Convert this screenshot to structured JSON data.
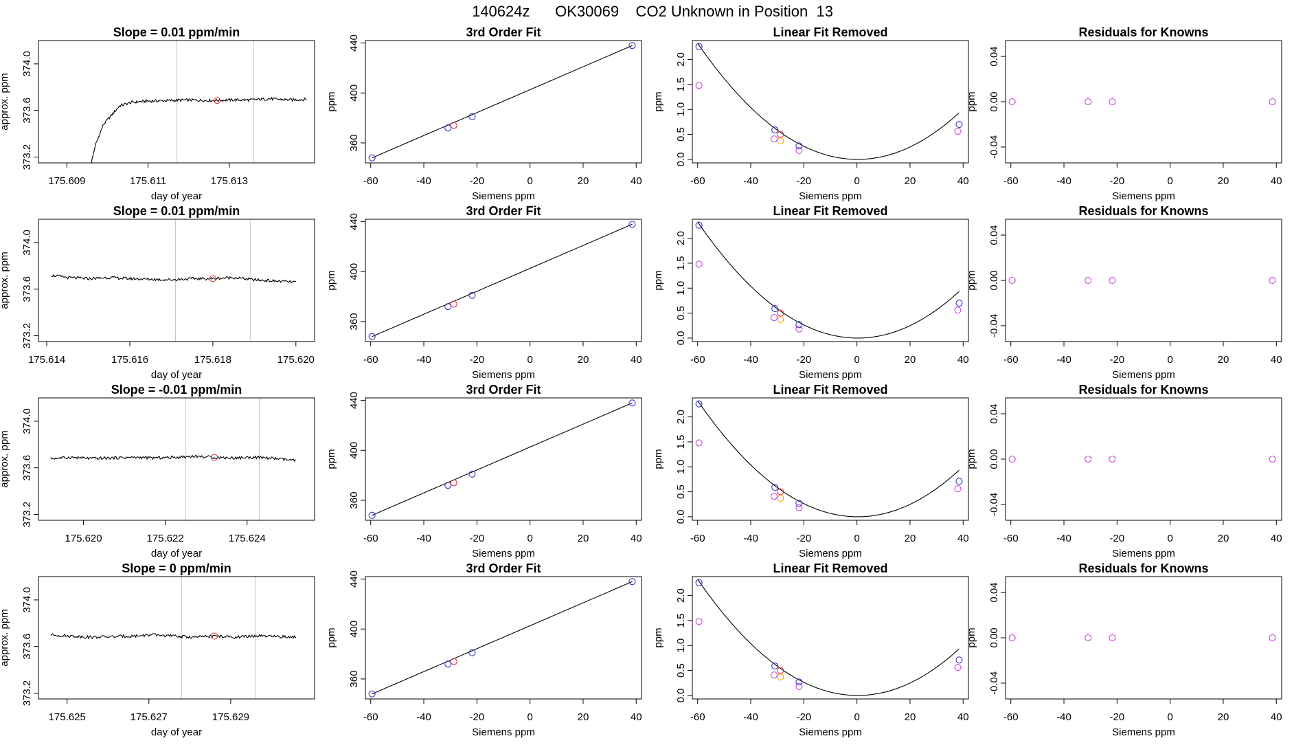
{
  "figure": {
    "title": "140624z      OK30069    CO2 Unknown in Position  13"
  },
  "colors": {
    "line": "#000000",
    "known": "#3333cc",
    "unknown": "#e03030",
    "alt": "#cc44dd",
    "orange": "#ffaa00",
    "vline": "#c8c8c8",
    "frame": "#000000"
  },
  "chart_data": [
    {
      "type": "line",
      "row": 1,
      "title": "Slope =  0.01  ppm/min",
      "xlabel": "day of year",
      "ylabel": "approx. ppm",
      "xlim": [
        175.6083,
        175.6151
      ],
      "ylim": [
        373.15,
        374.2
      ],
      "xticks": [
        175.609,
        175.611,
        175.613
      ],
      "xticklabels": [
        "175.609",
        "175.611",
        "175.613"
      ],
      "yticks": [
        373.2,
        373.6,
        374.0
      ],
      "yticklabels": [
        "373.2",
        "373.6",
        "374.0"
      ],
      "vlines": [
        175.6117,
        175.6136
      ],
      "x": [
        175.6096,
        175.6097,
        175.6099,
        175.6101,
        175.6103,
        175.6106,
        175.611,
        175.6115,
        175.612,
        175.6125,
        175.613,
        175.6135,
        175.614,
        175.6145,
        175.6149
      ],
      "y": [
        373.15,
        373.3,
        373.48,
        373.56,
        373.64,
        373.67,
        373.68,
        373.685,
        373.69,
        373.685,
        373.69,
        373.69,
        373.7,
        373.69,
        373.695
      ],
      "noise": 0.012,
      "marker": {
        "x": 175.6127,
        "y": 373.685
      }
    },
    {
      "type": "scatter",
      "row": 1,
      "title": "3rd Order Fit",
      "xlabel": "Siemens ppm",
      "ylabel": "ppm",
      "xlim": [
        -62,
        42
      ],
      "ylim": [
        344,
        442
      ],
      "xticks": [
        -60,
        -40,
        -20,
        0,
        20,
        40
      ],
      "xticklabels": [
        "-60",
        "-40",
        "-20",
        "0",
        "20",
        "40"
      ],
      "yticks": [
        360,
        400,
        440
      ],
      "yticklabels": [
        "360",
        "400",
        "440"
      ],
      "line": {
        "from": [
          -59.5,
          348
        ],
        "to": [
          38.5,
          438
        ]
      },
      "known": [
        [
          -59.5,
          348
        ],
        [
          -30.9,
          372
        ],
        [
          -21.8,
          381
        ],
        [
          38.5,
          438
        ]
      ],
      "unknown": [
        [
          -28.7,
          374
        ]
      ]
    },
    {
      "type": "scatter",
      "row": 1,
      "title": "Linear Fit Removed",
      "xlabel": "Siemens ppm",
      "ylabel": "ppm",
      "xlim": [
        -62,
        42
      ],
      "ylim": [
        -0.07,
        2.38
      ],
      "xticks": [
        -60,
        -40,
        -20,
        0,
        20,
        40
      ],
      "xticklabels": [
        "-60",
        "-40",
        "-20",
        "0",
        "20",
        "40"
      ],
      "yticks": [
        0.0,
        0.5,
        1.0,
        1.5,
        2.0
      ],
      "yticklabels": [
        "0.0",
        "0.5",
        "1.0",
        "1.5",
        "2.0"
      ],
      "curve": {
        "a": 0.00064,
        "b": -0.00036,
        "xmin": -60,
        "xmax": 38.5
      },
      "known": [
        [
          -59.5,
          2.26
        ],
        [
          -30.9,
          0.59
        ],
        [
          -21.8,
          0.27
        ],
        [
          38.5,
          0.7
        ]
      ],
      "alt": [
        [
          -59.5,
          1.48
        ],
        [
          -31.2,
          0.41
        ],
        [
          -21.8,
          0.18
        ],
        [
          38.0,
          0.56
        ]
      ],
      "unknown": [
        [
          -28.8,
          0.5
        ]
      ],
      "orange": [
        [
          -28.8,
          0.37
        ]
      ]
    },
    {
      "type": "scatter",
      "row": 1,
      "title": "Residuals for Knowns",
      "xlabel": "Siemens ppm",
      "ylabel": "ppm",
      "xlim": [
        -62,
        42
      ],
      "ylim": [
        -0.054,
        0.054
      ],
      "xticks": [
        -60,
        -40,
        -20,
        0,
        20,
        40
      ],
      "xticklabels": [
        "-60",
        "-40",
        "-20",
        "0",
        "20",
        "40"
      ],
      "yticks": [
        -0.04,
        0.0,
        0.04
      ],
      "yticklabels": [
        "-0.04",
        "0.00",
        "0.04"
      ],
      "alt": [
        [
          -59.5,
          0
        ],
        [
          -30.9,
          0
        ],
        [
          -21.8,
          0
        ],
        [
          38.5,
          0
        ]
      ]
    },
    {
      "type": "line",
      "row": 2,
      "title": "Slope =  0.01  ppm/min",
      "xlabel": "day of year",
      "ylabel": "approx. ppm",
      "xlim": [
        175.6138,
        175.62045
      ],
      "ylim": [
        373.15,
        374.2
      ],
      "xticks": [
        175.614,
        175.616,
        175.618,
        175.62
      ],
      "xticklabels": [
        "175.614",
        "175.616",
        "175.618",
        "175.620"
      ],
      "vlines": [
        175.6171,
        175.6189
      ],
      "yticks": [
        373.2,
        373.6,
        374.0
      ],
      "yticklabels": [
        "373.2",
        "373.6",
        "374.0"
      ],
      "x": [
        175.6141,
        175.6145,
        175.615,
        175.6155,
        175.616,
        175.6165,
        175.617,
        175.6175,
        175.618,
        175.6185,
        175.619,
        175.6195,
        175.62
      ],
      "y": [
        373.72,
        373.7,
        373.69,
        373.7,
        373.69,
        373.685,
        373.68,
        373.69,
        373.69,
        373.7,
        373.68,
        373.67,
        373.66
      ],
      "noise": 0.012,
      "marker": {
        "x": 175.618,
        "y": 373.69
      }
    },
    {
      "type": "scatter",
      "row": 2,
      "title": "3rd Order Fit",
      "xlabel": "Siemens ppm",
      "ylabel": "ppm",
      "xlim": [
        -62,
        42
      ],
      "ylim": [
        344,
        442
      ],
      "xticks": [
        -60,
        -40,
        -20,
        0,
        20,
        40
      ],
      "xticklabels": [
        "-60",
        "-40",
        "-20",
        "0",
        "20",
        "40"
      ],
      "yticks": [
        360,
        400,
        440
      ],
      "yticklabels": [
        "360",
        "400",
        "440"
      ],
      "line": {
        "from": [
          -59.5,
          348
        ],
        "to": [
          38.5,
          438
        ]
      },
      "known": [
        [
          -59.5,
          348
        ],
        [
          -30.9,
          372
        ],
        [
          -21.8,
          381
        ],
        [
          38.5,
          438
        ]
      ],
      "unknown": [
        [
          -28.7,
          374
        ]
      ]
    },
    {
      "type": "scatter",
      "row": 2,
      "title": "Linear Fit Removed",
      "xlabel": "Siemens ppm",
      "ylabel": "ppm",
      "xlim": [
        -62,
        42
      ],
      "ylim": [
        -0.07,
        2.38
      ],
      "xticks": [
        -60,
        -40,
        -20,
        0,
        20,
        40
      ],
      "xticklabels": [
        "-60",
        "-40",
        "-20",
        "0",
        "20",
        "40"
      ],
      "yticks": [
        0.0,
        0.5,
        1.0,
        1.5,
        2.0
      ],
      "yticklabels": [
        "0.0",
        "0.5",
        "1.0",
        "1.5",
        "2.0"
      ],
      "curve": {
        "a": 0.00064,
        "b": -0.00036,
        "xmin": -60,
        "xmax": 38.5
      },
      "known": [
        [
          -59.5,
          2.26
        ],
        [
          -30.9,
          0.59
        ],
        [
          -21.8,
          0.27
        ],
        [
          38.5,
          0.7
        ]
      ],
      "alt": [
        [
          -59.5,
          1.48
        ],
        [
          -31.2,
          0.41
        ],
        [
          -21.8,
          0.18
        ],
        [
          38.0,
          0.56
        ]
      ],
      "unknown": [
        [
          -28.8,
          0.5
        ]
      ],
      "orange": [
        [
          -28.8,
          0.37
        ]
      ]
    },
    {
      "type": "scatter",
      "row": 2,
      "title": "Residuals for Knowns",
      "xlabel": "Siemens ppm",
      "ylabel": "ppm",
      "xlim": [
        -62,
        42
      ],
      "ylim": [
        -0.054,
        0.054
      ],
      "xticks": [
        -60,
        -40,
        -20,
        0,
        20,
        40
      ],
      "xticklabels": [
        "-60",
        "-40",
        "-20",
        "0",
        "20",
        "40"
      ],
      "yticks": [
        -0.04,
        0.0,
        0.04
      ],
      "yticklabels": [
        "-0.04",
        "0.00",
        "0.04"
      ],
      "alt": [
        [
          -59.5,
          0
        ],
        [
          -30.9,
          0
        ],
        [
          -21.8,
          0
        ],
        [
          38.5,
          0
        ]
      ]
    },
    {
      "type": "line",
      "row": 3,
      "title": "Slope =  -0.01  ppm/min",
      "xlabel": "day of year",
      "ylabel": "approx. ppm",
      "xlim": [
        175.6189,
        175.62565
      ],
      "ylim": [
        373.15,
        374.2
      ],
      "xticks": [
        175.62,
        175.622,
        175.624
      ],
      "xticklabels": [
        "175.620",
        "175.622",
        "175.624"
      ],
      "vlines": [
        175.6225,
        175.6243
      ],
      "yticks": [
        373.2,
        373.6,
        374.0
      ],
      "yticklabels": [
        "373.2",
        "373.6",
        "374.0"
      ],
      "x": [
        175.6192,
        175.6197,
        175.6202,
        175.6207,
        175.6212,
        175.6217,
        175.6222,
        175.6227,
        175.6232,
        175.6237,
        175.6242,
        175.6247,
        175.6252
      ],
      "y": [
        373.68,
        373.69,
        373.68,
        373.685,
        373.69,
        373.685,
        373.69,
        373.7,
        373.69,
        373.685,
        373.69,
        373.68,
        373.66
      ],
      "noise": 0.012,
      "marker": {
        "x": 175.6232,
        "y": 373.69
      }
    },
    {
      "type": "scatter",
      "row": 3,
      "title": "3rd Order Fit",
      "xlabel": "Siemens ppm",
      "ylabel": "ppm",
      "xlim": [
        -62,
        42
      ],
      "ylim": [
        344,
        442
      ],
      "xticks": [
        -60,
        -40,
        -20,
        0,
        20,
        40
      ],
      "xticklabels": [
        "-60",
        "-40",
        "-20",
        "0",
        "20",
        "40"
      ],
      "yticks": [
        360,
        400,
        440
      ],
      "yticklabels": [
        "360",
        "400",
        "440"
      ],
      "line": {
        "from": [
          -59.5,
          348
        ],
        "to": [
          38.5,
          438
        ]
      },
      "known": [
        [
          -59.5,
          348
        ],
        [
          -30.9,
          372
        ],
        [
          -21.8,
          381
        ],
        [
          38.5,
          438
        ]
      ],
      "unknown": [
        [
          -28.7,
          374
        ]
      ]
    },
    {
      "type": "scatter",
      "row": 3,
      "title": "Linear Fit Removed",
      "xlabel": "Siemens ppm",
      "ylabel": "ppm",
      "xlim": [
        -62,
        42
      ],
      "ylim": [
        -0.07,
        2.38
      ],
      "xticks": [
        -60,
        -40,
        -20,
        0,
        20,
        40
      ],
      "xticklabels": [
        "-60",
        "-40",
        "-20",
        "0",
        "20",
        "40"
      ],
      "yticks": [
        0.0,
        0.5,
        1.0,
        1.5,
        2.0
      ],
      "yticklabels": [
        "0.0",
        "0.5",
        "1.0",
        "1.5",
        "2.0"
      ],
      "curve": {
        "a": 0.00064,
        "b": -0.00036,
        "xmin": -60,
        "xmax": 38.5
      },
      "known": [
        [
          -59.5,
          2.26
        ],
        [
          -30.9,
          0.59
        ],
        [
          -21.8,
          0.27
        ],
        [
          38.5,
          0.71
        ]
      ],
      "alt": [
        [
          -59.5,
          1.48
        ],
        [
          -31.2,
          0.41
        ],
        [
          -21.8,
          0.18
        ],
        [
          38.0,
          0.56
        ]
      ],
      "unknown": [
        [
          -28.8,
          0.5
        ]
      ],
      "orange": [
        [
          -28.8,
          0.37
        ]
      ]
    },
    {
      "type": "scatter",
      "row": 3,
      "title": "Residuals for Knowns",
      "xlabel": "Siemens ppm",
      "ylabel": "ppm",
      "xlim": [
        -62,
        42
      ],
      "ylim": [
        -0.054,
        0.054
      ],
      "xticks": [
        -60,
        -40,
        -20,
        0,
        20,
        40
      ],
      "xticklabels": [
        "-60",
        "-40",
        "-20",
        "0",
        "20",
        "40"
      ],
      "yticks": [
        -0.04,
        0.0,
        0.04
      ],
      "yticklabels": [
        "-0.04",
        "0.00",
        "0.04"
      ],
      "alt": [
        [
          -59.5,
          0
        ],
        [
          -30.9,
          0
        ],
        [
          -21.8,
          0
        ],
        [
          38.5,
          0
        ]
      ]
    },
    {
      "type": "line",
      "row": 4,
      "title": "Slope =  0  ppm/min",
      "xlabel": "day of year",
      "ylabel": "approx. ppm",
      "xlim": [
        175.6243,
        175.63105
      ],
      "ylim": [
        373.15,
        374.2
      ],
      "xticks": [
        175.625,
        175.627,
        175.629
      ],
      "xticklabels": [
        "175.625",
        "175.627",
        "175.629"
      ],
      "vlines": [
        175.6278,
        175.6296
      ],
      "yticks": [
        373.2,
        373.6,
        374.0
      ],
      "yticklabels": [
        "373.2",
        "373.6",
        "374.0"
      ],
      "x": [
        175.6246,
        175.6251,
        175.6256,
        175.6261,
        175.6266,
        175.6271,
        175.6276,
        175.6281,
        175.6286,
        175.6291,
        175.6296,
        175.6301,
        175.6306
      ],
      "y": [
        373.7,
        373.69,
        373.68,
        373.685,
        373.69,
        373.7,
        373.69,
        373.68,
        373.69,
        373.68,
        373.69,
        373.685,
        373.68
      ],
      "noise": 0.012,
      "marker": {
        "x": 175.6286,
        "y": 373.69
      }
    },
    {
      "type": "scatter",
      "row": 4,
      "title": "3rd Order Fit",
      "xlabel": "Siemens ppm",
      "ylabel": "ppm",
      "xlim": [
        -62,
        42
      ],
      "ylim": [
        344,
        442
      ],
      "xticks": [
        -60,
        -40,
        -20,
        0,
        20,
        40
      ],
      "xticklabels": [
        "-60",
        "-40",
        "-20",
        "0",
        "20",
        "40"
      ],
      "yticks": [
        360,
        400,
        440
      ],
      "yticklabels": [
        "360",
        "400",
        "440"
      ],
      "line": {
        "from": [
          -59.5,
          348
        ],
        "to": [
          38.5,
          438
        ]
      },
      "known": [
        [
          -59.5,
          348
        ],
        [
          -30.9,
          372
        ],
        [
          -21.8,
          381
        ],
        [
          38.5,
          438
        ]
      ],
      "unknown": [
        [
          -28.7,
          374
        ]
      ]
    },
    {
      "type": "scatter",
      "row": 4,
      "title": "Linear Fit Removed",
      "xlabel": "Siemens ppm",
      "ylabel": "ppm",
      "xlim": [
        -62,
        42
      ],
      "ylim": [
        -0.07,
        2.38
      ],
      "xticks": [
        -60,
        -40,
        -20,
        0,
        20,
        40
      ],
      "xticklabels": [
        "-60",
        "-40",
        "-20",
        "0",
        "20",
        "40"
      ],
      "yticks": [
        0.0,
        0.5,
        1.0,
        1.5,
        2.0
      ],
      "yticklabels": [
        "0.0",
        "0.5",
        "1.0",
        "1.5",
        "2.0"
      ],
      "curve": {
        "a": 0.00064,
        "b": -0.00036,
        "xmin": -60,
        "xmax": 38.5
      },
      "known": [
        [
          -59.5,
          2.26
        ],
        [
          -30.9,
          0.59
        ],
        [
          -21.8,
          0.27
        ],
        [
          38.5,
          0.71
        ]
      ],
      "alt": [
        [
          -59.5,
          1.48
        ],
        [
          -31.2,
          0.41
        ],
        [
          -21.8,
          0.18
        ],
        [
          38.0,
          0.56
        ]
      ],
      "unknown": [
        [
          -28.8,
          0.5
        ]
      ],
      "orange": [
        [
          -28.8,
          0.37
        ]
      ]
    },
    {
      "type": "scatter",
      "row": 4,
      "title": "Residuals for Knowns",
      "xlabel": "Siemens ppm",
      "ylabel": "ppm",
      "xlim": [
        -62,
        42
      ],
      "ylim": [
        -0.054,
        0.054
      ],
      "xticks": [
        -60,
        -40,
        -20,
        0,
        20,
        40
      ],
      "xticklabels": [
        "-60",
        "-40",
        "-20",
        "0",
        "20",
        "40"
      ],
      "yticks": [
        -0.04,
        0.0,
        0.04
      ],
      "yticklabels": [
        "-0.04",
        "0.00",
        "0.04"
      ],
      "alt": [
        [
          -59.5,
          0
        ],
        [
          -30.9,
          0
        ],
        [
          -21.8,
          0
        ],
        [
          38.5,
          0
        ]
      ]
    }
  ]
}
